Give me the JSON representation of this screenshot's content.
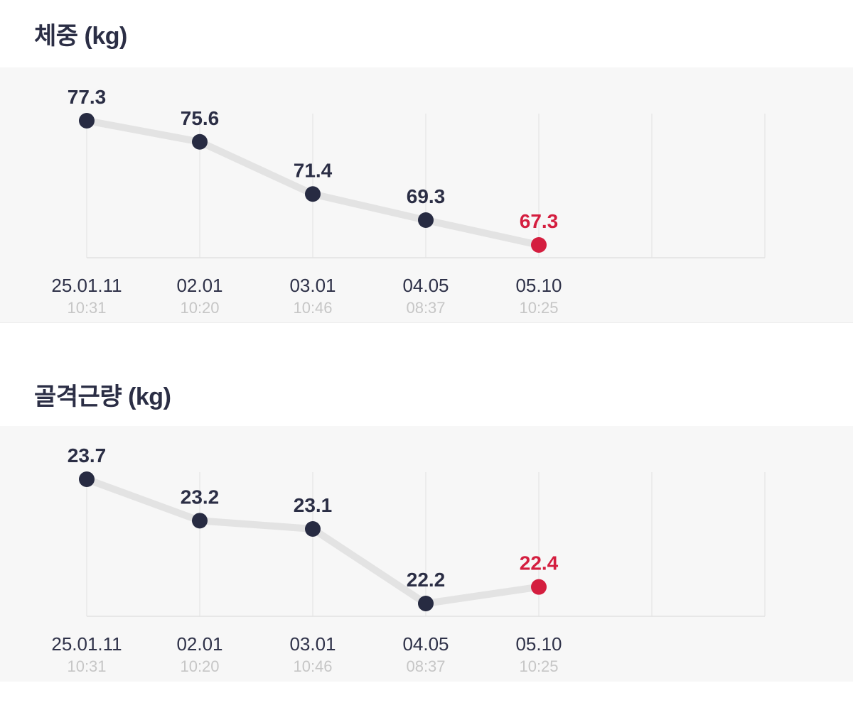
{
  "colors": {
    "panel_bg": "#f7f7f7",
    "title": "#2b2e45",
    "line": "#e3e3e3",
    "point": "#272b42",
    "highlight": "#d41e3f",
    "grid": "#e9e9e9",
    "baseline": "#e2e2e2",
    "date_label": "#2f3249",
    "time_label": "#c6c6c6",
    "value_label": "#2b2e45"
  },
  "chart_data": [
    {
      "type": "line",
      "title": "체중 (kg)",
      "unit": "kg",
      "x_labels": [
        {
          "date": "25.01.11",
          "time": "10:31"
        },
        {
          "date": "02.01",
          "time": "10:20"
        },
        {
          "date": "03.01",
          "time": "10:46"
        },
        {
          "date": "04.05",
          "time": "08:37"
        },
        {
          "date": "05.10",
          "time": "10:25"
        }
      ],
      "values": [
        77.3,
        75.6,
        71.4,
        69.3,
        67.3
      ],
      "highlight_last": true,
      "total_slots": 7,
      "grid": true,
      "legend": "none"
    },
    {
      "type": "line",
      "title": "골격근량 (kg)",
      "unit": "kg",
      "x_labels": [
        {
          "date": "25.01.11",
          "time": "10:31"
        },
        {
          "date": "02.01",
          "time": "10:20"
        },
        {
          "date": "03.01",
          "time": "10:46"
        },
        {
          "date": "04.05",
          "time": "08:37"
        },
        {
          "date": "05.10",
          "time": "10:25"
        }
      ],
      "values": [
        23.7,
        23.2,
        23.1,
        22.2,
        22.4
      ],
      "highlight_last": true,
      "total_slots": 7,
      "grid": true,
      "legend": "none"
    }
  ]
}
